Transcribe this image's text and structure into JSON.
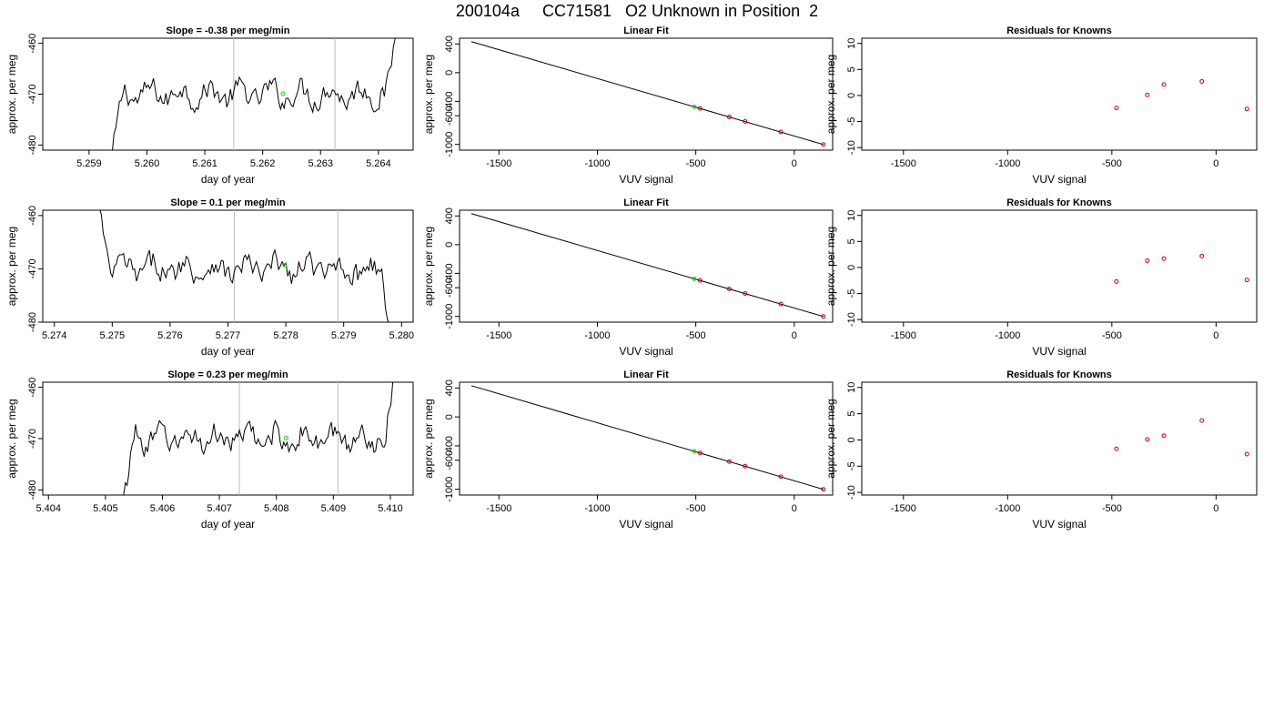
{
  "page_title": "200104a     CC71581   O2 Unknown in Position  2",
  "colors": {
    "line": "#000000",
    "known_points": "#cc0000",
    "unknown_point": "#00dd00",
    "vline": "#bbbbbb"
  },
  "chart_data": [
    {
      "type": "line",
      "row": 0,
      "col": 0,
      "title": "Slope =  -0.38  per meg/min",
      "xlabel": "day of year",
      "ylabel": "approx. per meg",
      "xlim": [
        5.2582,
        5.2646
      ],
      "ylim": [
        -481,
        -459
      ],
      "xticks": [
        5.259,
        5.26,
        5.261,
        5.262,
        5.263,
        5.264
      ],
      "xticklabels": [
        "5.259",
        "5.260",
        "5.261",
        "5.262",
        "5.263",
        "5.264"
      ],
      "yticks": [
        -480,
        -470,
        -460
      ],
      "yticklabels": [
        "-480",
        "-470",
        "-460"
      ],
      "vlines": [
        5.2615,
        5.26325
      ],
      "series_start": 5.2594,
      "series_end": 5.26435,
      "unknown_point": {
        "x": 5.26235,
        "y": -469.9
      }
    },
    {
      "type": "scatter",
      "row": 0,
      "col": 1,
      "title": "Linear Fit",
      "xlabel": "VUV signal",
      "ylabel": "approx. per meg",
      "xlim": [
        -1700,
        195
      ],
      "ylim": [
        -1080,
        480
      ],
      "xticks": [
        -1500,
        -1000,
        -500,
        0
      ],
      "xticklabels": [
        "-1500",
        "-1000",
        "-500",
        "0"
      ],
      "yticks": [
        -1000,
        -600,
        -400,
        0,
        400
      ],
      "yticklabels": [
        "-1000",
        "-600",
        "-400",
        "0",
        "400"
      ],
      "fit_line": {
        "x": [
          -1640,
          150
        ],
        "y": [
          432,
          -1003
        ]
      },
      "known_points": {
        "x": [
          -478,
          -330,
          -250,
          -68,
          148
        ],
        "y": [
          -498,
          -617,
          -681,
          -827,
          -1001
        ]
      },
      "unknown_point": {
        "x": -508,
        "y": -476
      }
    },
    {
      "type": "scatter",
      "row": 0,
      "col": 2,
      "title": "Residuals for Knowns",
      "xlabel": "VUV signal",
      "ylabel": "approx. per meg",
      "xlim": [
        -1700,
        195
      ],
      "ylim": [
        -10.5,
        11
      ],
      "xticks": [
        -1500,
        -1000,
        -500,
        0
      ],
      "xticklabels": [
        "-1500",
        "-1000",
        "-500",
        "0"
      ],
      "yticks": [
        -10,
        -5,
        0,
        5,
        10
      ],
      "yticklabels": [
        "-10",
        "-5",
        "0",
        "5",
        "10"
      ],
      "points": {
        "x": [
          -478,
          -330,
          -250,
          -68,
          148
        ],
        "y": [
          -2.4,
          0.1,
          2.1,
          2.7,
          -2.6
        ]
      }
    },
    {
      "type": "line",
      "row": 1,
      "col": 0,
      "title": "Slope =  0.1  per meg/min",
      "xlabel": "day of year",
      "ylabel": "approx. per meg",
      "xlim": [
        5.2738,
        5.2802
      ],
      "ylim": [
        -480,
        -459
      ],
      "xticks": [
        5.274,
        5.275,
        5.276,
        5.277,
        5.278,
        5.279,
        5.28
      ],
      "xticklabels": [
        "5.274",
        "5.275",
        "5.276",
        "5.277",
        "5.278",
        "5.279",
        "5.280"
      ],
      "yticks": [
        -480,
        -470,
        -460
      ],
      "yticklabels": [
        "-480",
        "-470",
        "-460"
      ],
      "vlines": [
        5.27711,
        5.2789
      ],
      "series_start": 5.27475,
      "series_end": 5.27985,
      "unknown_point": {
        "x": 5.27798,
        "y": -469.3
      }
    },
    {
      "type": "scatter",
      "row": 1,
      "col": 1,
      "title": "Linear Fit",
      "xlabel": "VUV signal",
      "ylabel": "approx. per meg",
      "xlim": [
        -1700,
        195
      ],
      "ylim": [
        -1080,
        480
      ],
      "xticks": [
        -1500,
        -1000,
        -500,
        0
      ],
      "xticklabels": [
        "-1500",
        "-1000",
        "-500",
        "0"
      ],
      "yticks": [
        -1000,
        -600,
        -400,
        0,
        400
      ],
      "yticklabels": [
        "-1000",
        "-600",
        "-400",
        "0",
        "400"
      ],
      "fit_line": {
        "x": [
          -1640,
          150
        ],
        "y": [
          432,
          -1003
        ]
      },
      "known_points": {
        "x": [
          -478,
          -330,
          -250,
          -68,
          148
        ],
        "y": [
          -498,
          -617,
          -681,
          -827,
          -1001
        ]
      },
      "unknown_point": {
        "x": -508,
        "y": -476
      }
    },
    {
      "type": "scatter",
      "row": 1,
      "col": 2,
      "title": "Residuals for Knowns",
      "xlabel": "VUV signal",
      "ylabel": "approx. per meg",
      "xlim": [
        -1700,
        195
      ],
      "ylim": [
        -10.5,
        11
      ],
      "xticks": [
        -1500,
        -1000,
        -500,
        0
      ],
      "xticklabels": [
        "-1500",
        "-1000",
        "-500",
        "0"
      ],
      "yticks": [
        -10,
        -5,
        0,
        5,
        10
      ],
      "yticklabels": [
        "-10",
        "-5",
        "0",
        "5",
        "10"
      ],
      "points": {
        "x": [
          -478,
          -330,
          -250,
          -68,
          148
        ],
        "y": [
          -2.7,
          1.3,
          1.7,
          2.2,
          -2.4
        ]
      }
    },
    {
      "type": "line",
      "row": 2,
      "col": 0,
      "title": "Slope =  0.23  per meg/min",
      "xlabel": "day of year",
      "ylabel": "approx. per meg",
      "xlim": [
        5.4039,
        5.4104
      ],
      "ylim": [
        -481,
        -459
      ],
      "xticks": [
        5.404,
        5.405,
        5.406,
        5.407,
        5.408,
        5.409,
        5.41
      ],
      "xticklabels": [
        "5.404",
        "5.405",
        "5.406",
        "5.407",
        "5.408",
        "5.409",
        "5.410"
      ],
      "yticks": [
        -480,
        -470,
        -460
      ],
      "yticklabels": [
        "-480",
        "-470",
        "-460"
      ],
      "vlines": [
        5.40735,
        5.40908
      ],
      "series_start": 5.40532,
      "series_end": 5.4101,
      "unknown_point": {
        "x": 5.40817,
        "y": -469.9
      }
    },
    {
      "type": "scatter",
      "row": 2,
      "col": 1,
      "title": "Linear Fit",
      "xlabel": "VUV signal",
      "ylabel": "approx. per meg",
      "xlim": [
        -1700,
        195
      ],
      "ylim": [
        -1080,
        480
      ],
      "xticks": [
        -1500,
        -1000,
        -500,
        0
      ],
      "xticklabels": [
        "-1500",
        "-1000",
        "-500",
        "0"
      ],
      "yticks": [
        -1000,
        -600,
        -400,
        0,
        400
      ],
      "yticklabels": [
        "-1000",
        "-600",
        "-400",
        "0",
        "400"
      ],
      "fit_line": {
        "x": [
          -1640,
          150
        ],
        "y": [
          432,
          -1003
        ]
      },
      "known_points": {
        "x": [
          -478,
          -330,
          -250,
          -68,
          148
        ],
        "y": [
          -498,
          -617,
          -681,
          -827,
          -1001
        ]
      },
      "unknown_point": {
        "x": -508,
        "y": -476
      }
    },
    {
      "type": "scatter",
      "row": 2,
      "col": 2,
      "title": "Residuals for Knowns",
      "xlabel": "VUV signal",
      "ylabel": "approx. per meg",
      "xlim": [
        -1700,
        195
      ],
      "ylim": [
        -10.5,
        11
      ],
      "xticks": [
        -1500,
        -1000,
        -500,
        0
      ],
      "xticklabels": [
        "-1500",
        "-1000",
        "-500",
        "0"
      ],
      "yticks": [
        -10,
        -5,
        0,
        5,
        10
      ],
      "yticklabels": [
        "-10",
        "-5",
        "0",
        "5",
        "10"
      ],
      "points": {
        "x": [
          -478,
          -330,
          -250,
          -68,
          148
        ],
        "y": [
          -1.7,
          0.1,
          0.8,
          3.7,
          -2.7
        ]
      }
    }
  ]
}
